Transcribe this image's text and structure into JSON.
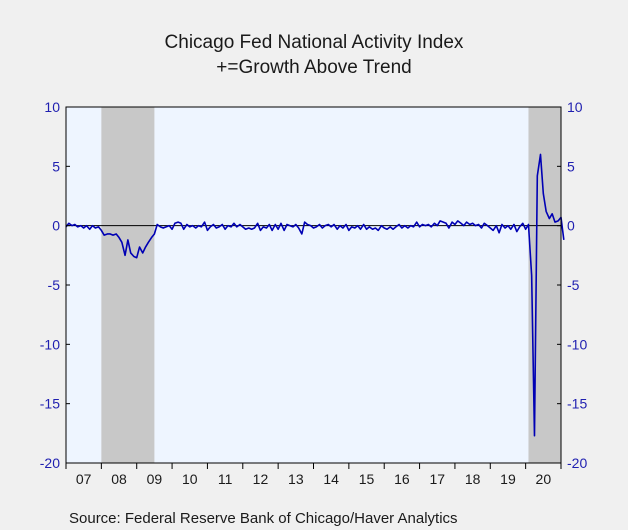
{
  "chart_data": {
    "type": "line",
    "title": "Chicago Fed National Activity Index",
    "subtitle": "+=Growth Above Trend",
    "xlabel": "",
    "ylabel": "",
    "ylim": [
      -20,
      10
    ],
    "y_ticks": [
      10,
      5,
      0,
      -5,
      -10,
      -15,
      -20
    ],
    "x_ticks": [
      "07",
      "08",
      "09",
      "10",
      "11",
      "12",
      "13",
      "14",
      "15",
      "16",
      "17",
      "18",
      "19",
      "20"
    ],
    "x_range": [
      2007.0,
      2021.0
    ],
    "grid": false,
    "zero_line": true,
    "recessions": [
      {
        "start": 2008.0,
        "end": 2009.5
      },
      {
        "start": 2020.08,
        "end": 2021.0
      }
    ],
    "series": [
      {
        "color": "#0000b4",
        "points": [
          [
            2007.0,
            -0.1
          ],
          [
            2007.08,
            0.2
          ],
          [
            2007.17,
            0.0
          ],
          [
            2007.25,
            0.1
          ],
          [
            2007.33,
            -0.1
          ],
          [
            2007.42,
            0.0
          ],
          [
            2007.5,
            -0.2
          ],
          [
            2007.58,
            0.0
          ],
          [
            2007.67,
            -0.3
          ],
          [
            2007.75,
            0.0
          ],
          [
            2007.83,
            -0.2
          ],
          [
            2007.92,
            -0.1
          ],
          [
            2008.0,
            -0.4
          ],
          [
            2008.08,
            -0.8
          ],
          [
            2008.17,
            -0.7
          ],
          [
            2008.25,
            -0.7
          ],
          [
            2008.33,
            -0.8
          ],
          [
            2008.42,
            -0.7
          ],
          [
            2008.5,
            -1.0
          ],
          [
            2008.58,
            -1.4
          ],
          [
            2008.67,
            -2.5
          ],
          [
            2008.75,
            -1.2
          ],
          [
            2008.83,
            -2.3
          ],
          [
            2008.92,
            -2.6
          ],
          [
            2009.0,
            -2.7
          ],
          [
            2009.08,
            -1.8
          ],
          [
            2009.17,
            -2.3
          ],
          [
            2009.25,
            -1.8
          ],
          [
            2009.33,
            -1.4
          ],
          [
            2009.42,
            -1.0
          ],
          [
            2009.5,
            -0.7
          ],
          [
            2009.58,
            0.1
          ],
          [
            2009.67,
            -0.1
          ],
          [
            2009.75,
            -0.2
          ],
          [
            2009.83,
            -0.1
          ],
          [
            2009.92,
            0.0
          ],
          [
            2010.0,
            -0.3
          ],
          [
            2010.08,
            0.2
          ],
          [
            2010.17,
            0.3
          ],
          [
            2010.25,
            0.2
          ],
          [
            2010.33,
            -0.3
          ],
          [
            2010.42,
            0.1
          ],
          [
            2010.5,
            -0.1
          ],
          [
            2010.58,
            0.0
          ],
          [
            2010.67,
            -0.2
          ],
          [
            2010.75,
            0.0
          ],
          [
            2010.83,
            -0.1
          ],
          [
            2010.92,
            0.3
          ],
          [
            2011.0,
            -0.4
          ],
          [
            2011.08,
            -0.1
          ],
          [
            2011.17,
            0.1
          ],
          [
            2011.25,
            -0.2
          ],
          [
            2011.33,
            -0.1
          ],
          [
            2011.42,
            0.1
          ],
          [
            2011.5,
            -0.3
          ],
          [
            2011.58,
            0.0
          ],
          [
            2011.67,
            -0.1
          ],
          [
            2011.75,
            0.2
          ],
          [
            2011.83,
            -0.1
          ],
          [
            2011.92,
            0.1
          ],
          [
            2012.0,
            -0.1
          ],
          [
            2012.08,
            -0.3
          ],
          [
            2012.17,
            -0.2
          ],
          [
            2012.25,
            -0.3
          ],
          [
            2012.33,
            -0.2
          ],
          [
            2012.42,
            0.2
          ],
          [
            2012.5,
            -0.4
          ],
          [
            2012.58,
            -0.1
          ],
          [
            2012.67,
            -0.2
          ],
          [
            2012.75,
            0.1
          ],
          [
            2012.83,
            -0.4
          ],
          [
            2012.92,
            0.1
          ],
          [
            2013.0,
            -0.3
          ],
          [
            2013.08,
            0.2
          ],
          [
            2013.17,
            -0.4
          ],
          [
            2013.25,
            0.1
          ],
          [
            2013.33,
            0.0
          ],
          [
            2013.42,
            -0.1
          ],
          [
            2013.5,
            0.1
          ],
          [
            2013.58,
            -0.2
          ],
          [
            2013.67,
            -0.7
          ],
          [
            2013.75,
            0.3
          ],
          [
            2013.83,
            0.1
          ],
          [
            2013.92,
            0.0
          ],
          [
            2014.0,
            -0.2
          ],
          [
            2014.08,
            -0.1
          ],
          [
            2014.17,
            0.1
          ],
          [
            2014.25,
            -0.2
          ],
          [
            2014.33,
            0.0
          ],
          [
            2014.42,
            0.1
          ],
          [
            2014.5,
            -0.1
          ],
          [
            2014.58,
            0.1
          ],
          [
            2014.67,
            -0.3
          ],
          [
            2014.75,
            0.0
          ],
          [
            2014.83,
            -0.2
          ],
          [
            2014.92,
            0.1
          ],
          [
            2015.0,
            -0.4
          ],
          [
            2015.08,
            -0.1
          ],
          [
            2015.17,
            -0.2
          ],
          [
            2015.25,
            0.0
          ],
          [
            2015.33,
            -0.3
          ],
          [
            2015.42,
            0.1
          ],
          [
            2015.5,
            -0.3
          ],
          [
            2015.58,
            -0.1
          ],
          [
            2015.67,
            -0.3
          ],
          [
            2015.75,
            -0.2
          ],
          [
            2015.83,
            -0.4
          ],
          [
            2015.92,
            0.0
          ],
          [
            2016.0,
            -0.2
          ],
          [
            2016.08,
            -0.3
          ],
          [
            2016.17,
            -0.1
          ],
          [
            2016.25,
            -0.3
          ],
          [
            2016.33,
            -0.1
          ],
          [
            2016.42,
            0.1
          ],
          [
            2016.5,
            -0.2
          ],
          [
            2016.58,
            0.0
          ],
          [
            2016.67,
            -0.2
          ],
          [
            2016.75,
            0.0
          ],
          [
            2016.83,
            -0.1
          ],
          [
            2016.92,
            0.3
          ],
          [
            2017.0,
            -0.1
          ],
          [
            2017.08,
            0.1
          ],
          [
            2017.17,
            0.0
          ],
          [
            2017.25,
            0.1
          ],
          [
            2017.33,
            -0.1
          ],
          [
            2017.42,
            0.2
          ],
          [
            2017.5,
            0.0
          ],
          [
            2017.58,
            0.4
          ],
          [
            2017.67,
            0.3
          ],
          [
            2017.75,
            0.2
          ],
          [
            2017.83,
            -0.2
          ],
          [
            2017.92,
            0.3
          ],
          [
            2018.0,
            0.1
          ],
          [
            2018.08,
            0.4
          ],
          [
            2018.17,
            0.2
          ],
          [
            2018.25,
            0.0
          ],
          [
            2018.33,
            0.3
          ],
          [
            2018.42,
            0.1
          ],
          [
            2018.5,
            0.2
          ],
          [
            2018.58,
            0.0
          ],
          [
            2018.67,
            0.1
          ],
          [
            2018.75,
            -0.2
          ],
          [
            2018.83,
            0.2
          ],
          [
            2018.92,
            0.0
          ],
          [
            2019.0,
            -0.2
          ],
          [
            2019.08,
            -0.4
          ],
          [
            2019.17,
            0.0
          ],
          [
            2019.25,
            -0.6
          ],
          [
            2019.33,
            0.1
          ],
          [
            2019.42,
            -0.2
          ],
          [
            2019.5,
            0.0
          ],
          [
            2019.58,
            -0.3
          ],
          [
            2019.67,
            0.1
          ],
          [
            2019.75,
            -0.5
          ],
          [
            2019.83,
            -0.1
          ],
          [
            2019.92,
            0.2
          ],
          [
            2020.0,
            -0.3
          ],
          [
            2020.08,
            0.1
          ],
          [
            2020.17,
            -4.2
          ],
          [
            2020.25,
            -17.7
          ],
          [
            2020.33,
            4.2
          ],
          [
            2020.42,
            6.0
          ],
          [
            2020.5,
            2.7
          ],
          [
            2020.58,
            1.2
          ],
          [
            2020.67,
            0.6
          ],
          [
            2020.75,
            1.0
          ],
          [
            2020.83,
            0.3
          ],
          [
            2020.92,
            0.4
          ],
          [
            2021.0,
            0.7
          ],
          [
            2021.08,
            -1.2
          ]
        ]
      }
    ],
    "source": "Source:  Federal Reserve Bank of Chicago/Haver Analytics"
  },
  "colors": {
    "plot_background": "#eef5ff",
    "recession_band": "#c8c8c8",
    "axis_labels": "#1f1fb0",
    "series_line": "#0000b4"
  }
}
